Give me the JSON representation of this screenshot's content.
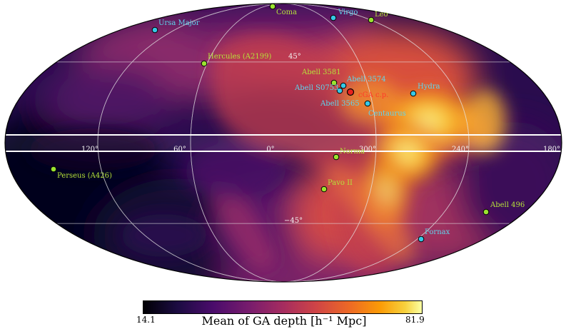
{
  "colorbar": {
    "min": "14.1",
    "max": "81.9",
    "label": "Mean of GA depth [h⁻¹ Mpc]"
  },
  "grid": {
    "lon_labels": [
      "120°",
      "60°",
      "0°",
      "300°",
      "240°",
      "180°"
    ],
    "lat_labels": [
      "45°",
      "−45°"
    ]
  },
  "colors": {
    "green_marker": "#9be330",
    "cyan_marker": "#37c8e6",
    "red_marker": "#e8231e",
    "green_text": "#b6e23a",
    "cyan_text": "#5fd6ee",
    "red_text": "#ff3a2a"
  },
  "clusters": [
    {
      "label": "Coma",
      "kind": "green"
    },
    {
      "label": "Virgo",
      "kind": "cyan"
    },
    {
      "label": "Leo",
      "kind": "green"
    },
    {
      "label": "Ursa Major",
      "kind": "cyan"
    },
    {
      "label": "Hercules (A2199)",
      "kind": "green"
    },
    {
      "label": "Abell 3581",
      "kind": "green"
    },
    {
      "label": "Abell 3574",
      "kind": "cyan"
    },
    {
      "label": "Abell S0753",
      "kind": "cyan"
    },
    {
      "label": "cGA c.p.",
      "kind": "red"
    },
    {
      "label": "Hydra",
      "kind": "cyan"
    },
    {
      "label": "Abell 3565",
      "kind": "cyan"
    },
    {
      "label": "Centaurus",
      "kind": "cyan"
    },
    {
      "label": "Norma",
      "kind": "green"
    },
    {
      "label": "Perseus (A426)",
      "kind": "green"
    },
    {
      "label": "Pavo II",
      "kind": "green"
    },
    {
      "label": "Abell 496",
      "kind": "green"
    },
    {
      "label": "Fornax",
      "kind": "cyan"
    }
  ]
}
